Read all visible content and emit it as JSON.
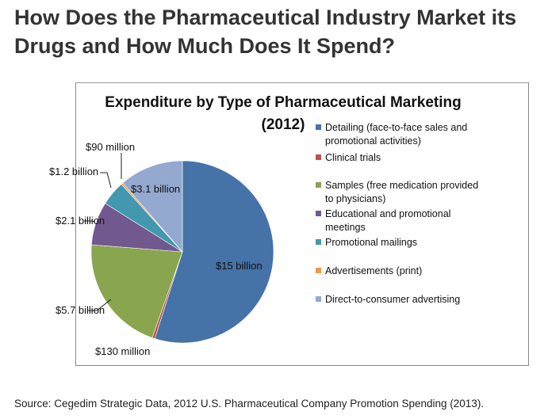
{
  "heading": "How Does the Pharmaceutical Industry Market its Drugs and How Much Does It Spend?",
  "source": "Source: Cegedim Strategic Data, 2012 U.S. Pharmaceutical Company Promotion Spending (2013).",
  "chart_data": {
    "type": "pie",
    "title": "Expenditure by Type of Pharmaceutical Marketing",
    "subtitle": "(2012)",
    "unit": "billion USD",
    "legend_position": "right",
    "slices": [
      {
        "name": "Detailing (face-to-face sales and promotional activities)",
        "legend_lines": [
          "Detailing (face-to-face sales and",
          "promotional activities)"
        ],
        "value": 15,
        "label": "$15  billion",
        "color": "#4572a7"
      },
      {
        "name": "Clinical trials",
        "legend_lines": [
          "Clinical trials"
        ],
        "value": 0.13,
        "label": "$130 million",
        "color": "#c0504d"
      },
      {
        "name": "Samples (free medication provided to physicians)",
        "legend_lines": [
          "Samples (free medication provided",
          "to physicians)"
        ],
        "value": 5.7,
        "label": "$5.7  billion",
        "color": "#89a54e"
      },
      {
        "name": "Educational and promotional meetings",
        "legend_lines": [
          "Educational and promotional",
          "meetings"
        ],
        "value": 2.1,
        "label": "$2.1 billion",
        "color": "#71588f"
      },
      {
        "name": "Promotional mailings",
        "legend_lines": [
          "Promotional mailings"
        ],
        "value": 1.2,
        "label": "$1.2 billion",
        "color": "#4198af"
      },
      {
        "name": "Advertisements (print)",
        "legend_lines": [
          "Advertisements (print)"
        ],
        "value": 0.09,
        "label": "$90 million",
        "color": "#f79646"
      },
      {
        "name": "Direct-to-consumer advertising",
        "legend_lines": [
          "Direct-to-consumer advertising"
        ],
        "value": 3.1,
        "label": "$3.1 billion",
        "color": "#93a9cf"
      }
    ]
  }
}
